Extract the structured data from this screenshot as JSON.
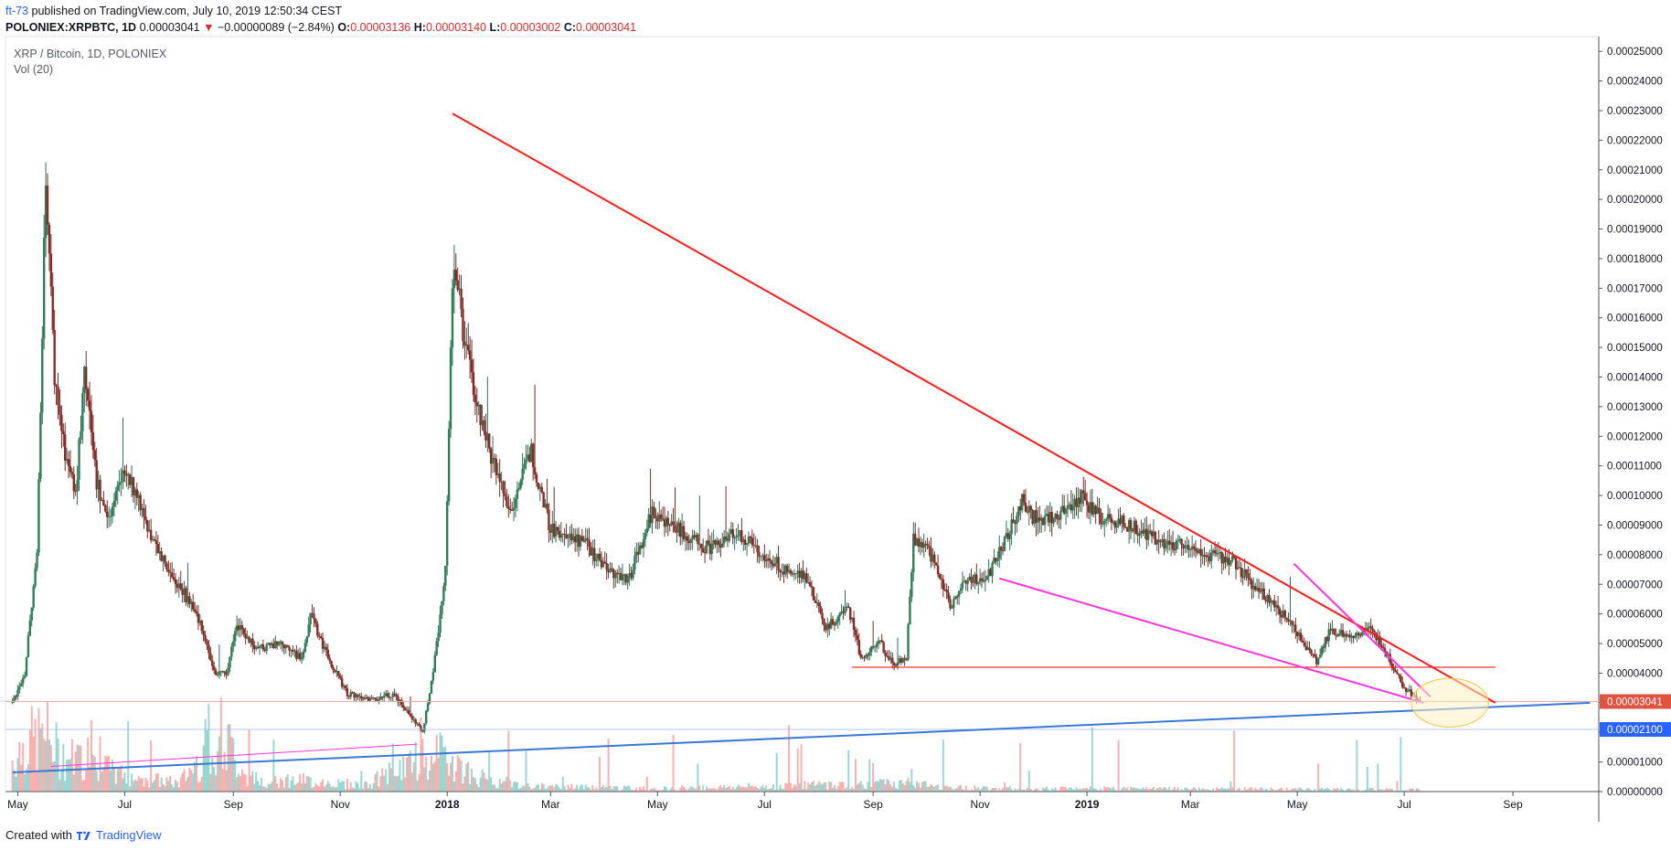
{
  "header": {
    "author": "ft-73",
    "published_text": "published on TradingView.com, July 10, 2019 12:50:34 CEST",
    "symbol": "POLONIEX:XRPBTC, 1D",
    "last": "0.00003041",
    "change_arrow": "▼",
    "change": "−0.00000089 (−2.84%)",
    "o_label": "O:",
    "o_value": "0.00003136",
    "h_label": "H:",
    "h_value": "0.00003140",
    "l_label": "L:",
    "l_value": "0.00003002",
    "c_label": "C:",
    "c_value": "0.00003041"
  },
  "legend": {
    "title": "XRP / Bitcoin, 1D, POLONIEX",
    "volume": "Vol (20)"
  },
  "footer": {
    "created_with": "Created with",
    "brand": "TradingView"
  },
  "colors": {
    "up": "#26a69a",
    "down": "#ef5350",
    "candle_up_fill": "#2e7d59",
    "candle_down_fill": "#8b2a22",
    "trendline_red": "#ff1a1a",
    "trendline_magenta": "#ff33dd",
    "trendline_blue": "#3a78d8",
    "price_label": "#e0533f",
    "support_label": "#2962ff"
  },
  "chart_data": {
    "type": "candlestick",
    "title": "XRP / Bitcoin, 1D, POLONIEX",
    "y_ticks": [
      "0.00025000",
      "0.00024000",
      "0.00023000",
      "0.00022000",
      "0.00021000",
      "0.00020000",
      "0.00019000",
      "0.00018000",
      "0.00017000",
      "0.00016000",
      "0.00015000",
      "0.00014000",
      "0.00013000",
      "0.00012000",
      "0.00011000",
      "0.00010000",
      "0.00009000",
      "0.00008000",
      "0.00007000",
      "0.00006000",
      "0.00005000",
      "0.00004000",
      "0.00003000",
      "0.00002000",
      "0.00001000",
      "0.00000000"
    ],
    "x_ticks": [
      "May",
      "Jul",
      "Sep",
      "Nov",
      "2018",
      "Mar",
      "May",
      "Jul",
      "Sep",
      "Nov",
      "2019",
      "Mar",
      "May",
      "Jul",
      "Sep"
    ],
    "ylim": [
      0,
      0.000255
    ],
    "last_price_label": "0.00003041",
    "support_label": "0.00002100",
    "price_path": [
      [
        "2017-04-28",
        3e-05
      ],
      [
        "2017-05-05",
        4e-05
      ],
      [
        "2017-05-12",
        8e-05
      ],
      [
        "2017-05-17",
        0.000209
      ],
      [
        "2017-05-22",
        0.00014
      ],
      [
        "2017-05-28",
        0.000115
      ],
      [
        "2017-06-03",
        0.0001
      ],
      [
        "2017-06-08",
        0.00014
      ],
      [
        "2017-06-15",
        0.000105
      ],
      [
        "2017-06-22",
        9.2e-05
      ],
      [
        "2017-07-01",
        0.00011
      ],
      [
        "2017-07-10",
        9.7e-05
      ],
      [
        "2017-07-20",
        8e-05
      ],
      [
        "2017-08-01",
        7e-05
      ],
      [
        "2017-08-12",
        5.8e-05
      ],
      [
        "2017-08-22",
        4e-05
      ],
      [
        "2017-08-28",
        4e-05
      ],
      [
        "2017-09-03",
        5.6e-05
      ],
      [
        "2017-09-15",
        4.8e-05
      ],
      [
        "2017-09-28",
        5e-05
      ],
      [
        "2017-10-10",
        4.5e-05
      ],
      [
        "2017-10-15",
        6e-05
      ],
      [
        "2017-10-25",
        4.5e-05
      ],
      [
        "2017-11-05",
        3.3e-05
      ],
      [
        "2017-11-20",
        3.1e-05
      ],
      [
        "2017-12-01",
        3.3e-05
      ],
      [
        "2017-12-12",
        2.5e-05
      ],
      [
        "2017-12-18",
        2e-05
      ],
      [
        "2017-12-24",
        4e-05
      ],
      [
        "2017-12-31",
        7.5e-05
      ],
      [
        "2018-01-03",
        0.00015
      ],
      [
        "2018-01-05",
        0.00018
      ],
      [
        "2018-01-10",
        0.000155
      ],
      [
        "2018-01-18",
        0.00013
      ],
      [
        "2018-01-28",
        0.00011
      ],
      [
        "2018-02-06",
        9.5e-05
      ],
      [
        "2018-02-18",
        0.000115
      ],
      [
        "2018-02-28",
        9e-05
      ],
      [
        "2018-03-10",
        8.5e-05
      ],
      [
        "2018-03-20",
        8.5e-05
      ],
      [
        "2018-04-01",
        7.5e-05
      ],
      [
        "2018-04-15",
        7.2e-05
      ],
      [
        "2018-04-28",
        9.5e-05
      ],
      [
        "2018-05-05",
        9.2e-05
      ],
      [
        "2018-05-20",
        8.5e-05
      ],
      [
        "2018-06-01",
        8.2e-05
      ],
      [
        "2018-06-15",
        8.8e-05
      ],
      [
        "2018-07-01",
        8e-05
      ],
      [
        "2018-07-15",
        7.4e-05
      ],
      [
        "2018-07-25",
        7.2e-05
      ],
      [
        "2018-08-05",
        5.5e-05
      ],
      [
        "2018-08-18",
        6.2e-05
      ],
      [
        "2018-08-25",
        4.5e-05
      ],
      [
        "2018-09-05",
        5e-05
      ],
      [
        "2018-09-12",
        4.3e-05
      ],
      [
        "2018-09-20",
        4.5e-05
      ],
      [
        "2018-09-24",
        8.5e-05
      ],
      [
        "2018-10-01",
        8.2e-05
      ],
      [
        "2018-10-08",
        7.5e-05
      ],
      [
        "2018-10-15",
        6.2e-05
      ],
      [
        "2018-10-22",
        7.2e-05
      ],
      [
        "2018-11-05",
        7.2e-05
      ],
      [
        "2018-11-15",
        8.5e-05
      ],
      [
        "2018-11-25",
        9.8e-05
      ],
      [
        "2018-12-05",
        9e-05
      ],
      [
        "2018-12-20",
        9.5e-05
      ],
      [
        "2018-12-28",
        0.0001
      ],
      [
        "2019-01-10",
        9.2e-05
      ],
      [
        "2019-01-25",
        9e-05
      ],
      [
        "2019-02-10",
        8.5e-05
      ],
      [
        "2019-02-25",
        8.3e-05
      ],
      [
        "2019-03-10",
        8e-05
      ],
      [
        "2019-03-25",
        7.8e-05
      ],
      [
        "2019-04-05",
        7e-05
      ],
      [
        "2019-04-15",
        6.5e-05
      ],
      [
        "2019-04-25",
        5.8e-05
      ],
      [
        "2019-05-05",
        5e-05
      ],
      [
        "2019-05-12",
        4.4e-05
      ],
      [
        "2019-05-20",
        5.5e-05
      ],
      [
        "2019-05-30",
        5.2e-05
      ],
      [
        "2019-06-10",
        5.5e-05
      ],
      [
        "2019-06-18",
        5e-05
      ],
      [
        "2019-06-25",
        4.2e-05
      ],
      [
        "2019-07-01",
        3.5e-05
      ],
      [
        "2019-07-05",
        3.3e-05
      ],
      [
        "2019-07-10",
        3e-05
      ]
    ],
    "volume_path": [
      [
        "2017-04-28",
        0.3
      ],
      [
        "2017-05-05",
        0.45
      ],
      [
        "2017-05-17",
        0.55
      ],
      [
        "2017-05-25",
        0.35
      ],
      [
        "2017-06-10",
        0.28
      ],
      [
        "2017-07-01",
        0.15
      ],
      [
        "2017-08-01",
        0.08
      ],
      [
        "2017-08-25",
        0.55
      ],
      [
        "2017-09-10",
        0.12
      ],
      [
        "2017-10-15",
        0.1
      ],
      [
        "2017-11-15",
        0.06
      ],
      [
        "2017-12-15",
        0.3
      ],
      [
        "2018-01-03",
        0.35
      ],
      [
        "2018-01-15",
        0.15
      ],
      [
        "2018-02-15",
        0.05
      ],
      [
        "2018-05-01",
        0.03
      ],
      [
        "2018-09-20",
        0.08
      ],
      [
        "2018-10-15",
        0.04
      ],
      [
        "2018-12-01",
        0.03
      ],
      [
        "2019-07-10",
        0.02
      ]
    ],
    "drawings": [
      {
        "name": "main-downtrend",
        "color": "red",
        "from": [
          "2018-01-04",
          0.000229
        ],
        "to": [
          "2019-08-22",
          3e-05
        ]
      },
      {
        "name": "horizontal-support",
        "color": "red",
        "from": [
          "2018-08-20",
          4.2e-05
        ],
        "to": [
          "2019-08-22",
          4.2e-05
        ]
      },
      {
        "name": "wedge-lower",
        "color": "magenta",
        "from": [
          "2018-11-12",
          7.2e-05
        ],
        "to": [
          "2019-07-12",
          3e-05
        ]
      },
      {
        "name": "wedge-upper",
        "color": "magenta",
        "from": [
          "2019-04-29",
          7.7e-05
        ],
        "to": [
          "2019-07-16",
          3.2e-05
        ]
      },
      {
        "name": "long-term-support",
        "color": "blue",
        "from": [
          "2017-04-28",
          6.5e-06
        ],
        "to": [
          "2019-10-15",
          3e-05
        ]
      },
      {
        "name": "old-uptrend",
        "color": "magenta",
        "from": [
          "2017-05-20",
          8.5e-06
        ],
        "to": [
          "2017-12-15",
          1.6e-05
        ]
      }
    ],
    "horizontal_lines": [
      {
        "name": "last-price-line",
        "value": 3.041e-05
      },
      {
        "name": "support-level-line",
        "value": 2.1e-05
      }
    ],
    "highlight_ellipse": {
      "center": [
        "2019-07-27",
        3e-05
      ],
      "rx_days": 22,
      "ry_value": 8.2e-06
    }
  }
}
